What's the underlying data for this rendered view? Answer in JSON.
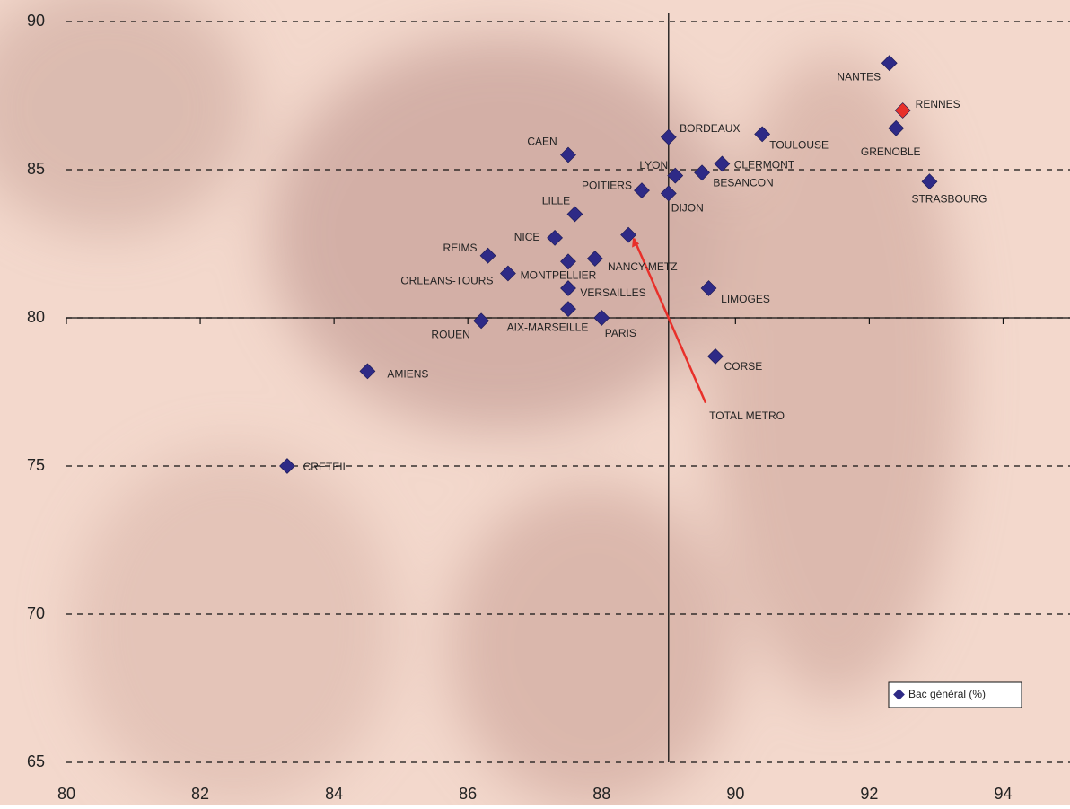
{
  "chart_data": {
    "type": "scatter",
    "legend_position": "lower right",
    "xlim": [
      80,
      95
    ],
    "xticks": [
      80,
      82,
      84,
      86,
      88,
      90,
      92,
      94
    ],
    "ylim": [
      65,
      90
    ],
    "yticks": [
      65,
      70,
      75,
      80,
      85,
      90
    ],
    "xcross": 89,
    "ycross": 80,
    "grid": true,
    "series": [
      {
        "name": "Bac général (%)",
        "color": "#2e2a86",
        "labels": [
          "NANTES",
          "RENNES",
          "GRENOBLE",
          "STRASBOURG",
          "TOULOUSE",
          "BORDEAUX",
          "CLERMONT",
          "LYON",
          "BESANCON",
          "DIJON",
          "POITIERS",
          "CAEN",
          "LILLE",
          "NICE",
          "TOTAL METRO",
          "REIMS",
          "NANCY-METZ",
          "MONTPELLIER",
          "ORLEANS-TOURS",
          "VERSAILLES",
          "LIMOGES",
          "AIX-MARSEILLE",
          "PARIS",
          "ROUEN",
          "CORSE",
          "AMIENS",
          "CRETEIL"
        ],
        "x": [
          92.3,
          92.5,
          92.4,
          92.9,
          90.4,
          89.0,
          89.8,
          89.1,
          89.5,
          89.0,
          88.6,
          87.5,
          87.6,
          87.3,
          88.4,
          86.3,
          87.9,
          87.5,
          86.6,
          87.5,
          89.6,
          87.5,
          88.0,
          86.2,
          89.7,
          84.5,
          83.3
        ],
        "values": [
          88.6,
          87.0,
          86.4,
          84.6,
          86.2,
          86.1,
          85.2,
          84.8,
          84.9,
          84.2,
          84.3,
          85.5,
          83.5,
          82.7,
          82.8,
          82.1,
          82.0,
          81.9,
          81.5,
          81.0,
          81.0,
          80.3,
          80.0,
          79.9,
          78.7,
          78.2,
          75.0
        ],
        "point_colors": [
          "#2e2a86",
          "#e8302a",
          "#2e2a86",
          "#2e2a86",
          "#2e2a86",
          "#2e2a86",
          "#2e2a86",
          "#2e2a86",
          "#2e2a86",
          "#2e2a86",
          "#2e2a86",
          "#2e2a86",
          "#2e2a86",
          "#2e2a86",
          "#2e2a86",
          "#2e2a86",
          "#2e2a86",
          "#2e2a86",
          "#2e2a86",
          "#2e2a86",
          "#2e2a86",
          "#2e2a86",
          "#2e2a86",
          "#2e2a86",
          "#2e2a86",
          "#2e2a86",
          "#2e2a86"
        ]
      }
    ]
  }
}
